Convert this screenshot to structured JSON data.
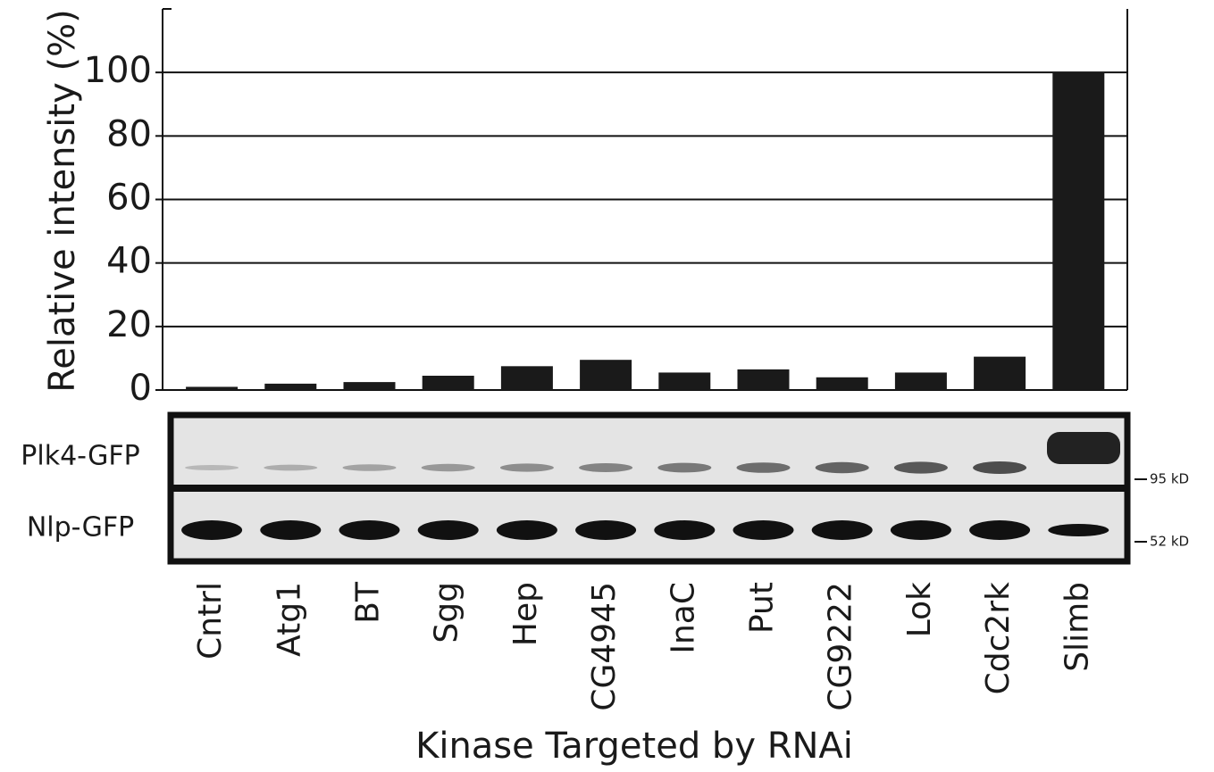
{
  "chart_data": {
    "type": "bar",
    "y_label": "Relative intensity (%)",
    "x_label": "Kinase Targeted by RNAi",
    "categories": [
      "Cntrl",
      "Atg1",
      "BT",
      "Sgg",
      "Hep",
      "CG4945",
      "InaC",
      "Put",
      "CG9222",
      "Lok",
      "Cdc2rk",
      "Slimb"
    ],
    "values": [
      1,
      2,
      2.5,
      4.5,
      7.5,
      9.5,
      5.5,
      6.5,
      4,
      5.5,
      10.5,
      100
    ],
    "color": "#1a1a1a",
    "ylim": [
      0,
      120
    ],
    "yticks": [
      0,
      20,
      40,
      60,
      80,
      100
    ],
    "grid": true,
    "blot_labels": [
      "Plk4-GFP",
      "Nlp-GFP"
    ],
    "size_markers": [
      "95 kD",
      "52 kD"
    ]
  }
}
